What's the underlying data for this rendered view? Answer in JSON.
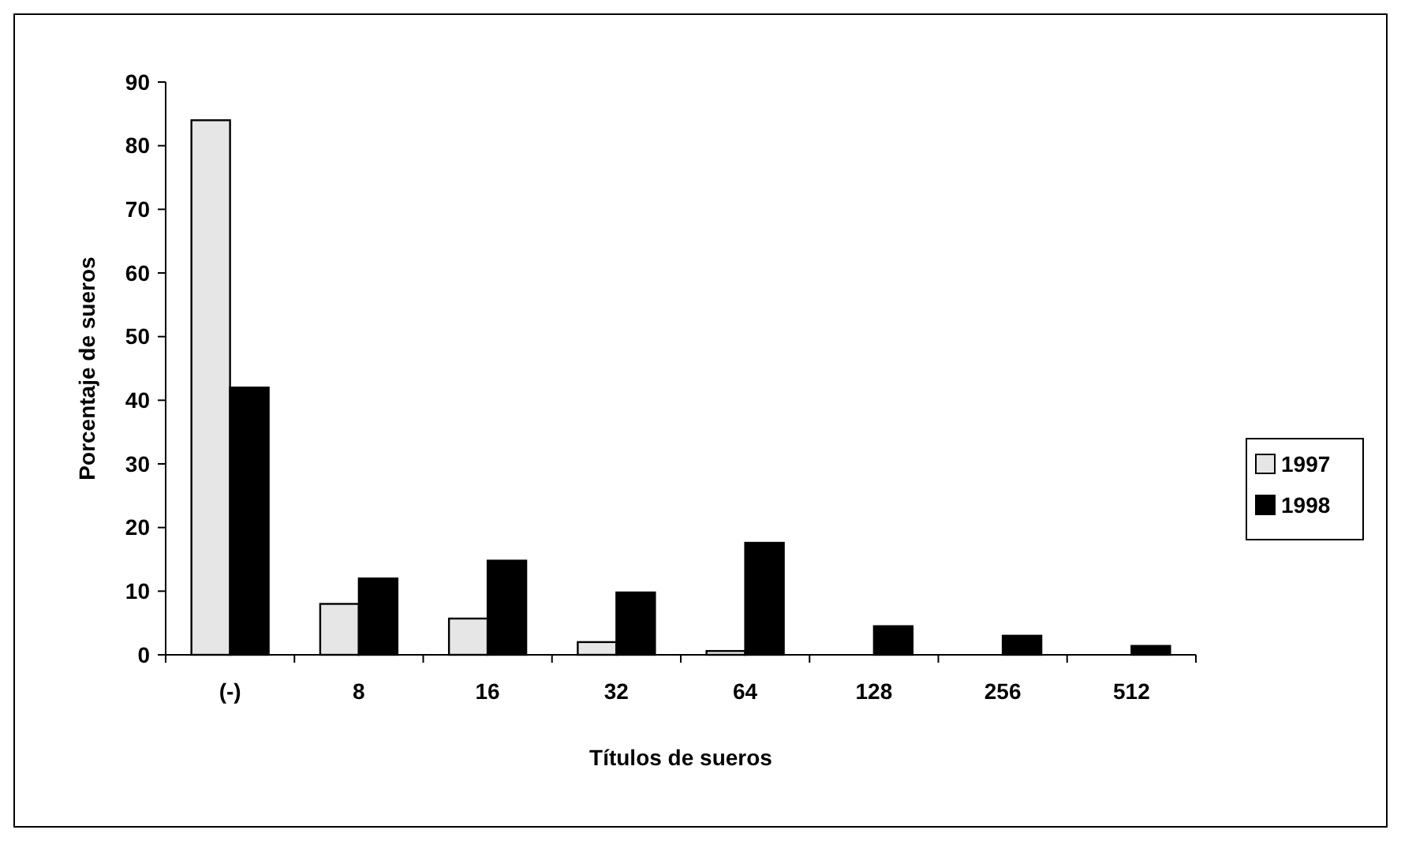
{
  "chart_data": {
    "type": "bar",
    "xlabel": "Títulos de sueros",
    "ylabel": "Porcentaje de sueros",
    "categories": [
      "(-)",
      "8",
      "16",
      "32",
      "64",
      "128",
      "256",
      "512"
    ],
    "series": [
      {
        "name": "1997",
        "color": "#e6e6e6",
        "values": [
          84,
          8,
          5.7,
          2,
          0.6,
          0,
          0,
          0
        ]
      },
      {
        "name": "1998",
        "color": "#000000",
        "values": [
          42,
          12,
          14.8,
          9.8,
          17.6,
          4.5,
          3,
          1.4
        ]
      }
    ],
    "ylim": [
      0,
      90
    ],
    "yticks": [
      0,
      10,
      20,
      30,
      40,
      50,
      60,
      70,
      80,
      90
    ],
    "grid": false,
    "legend": "right"
  }
}
